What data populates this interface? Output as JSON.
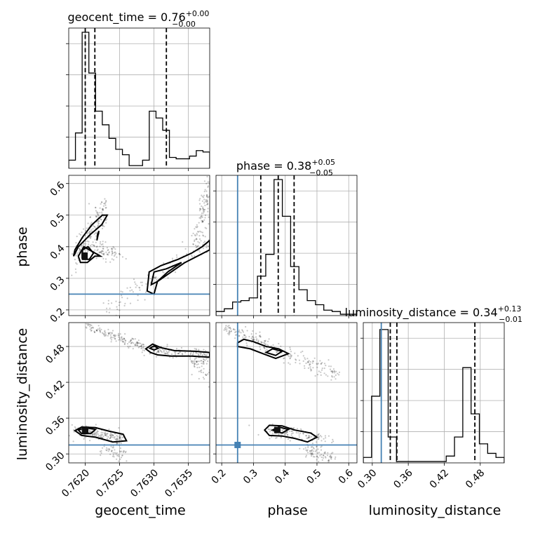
{
  "chart_data": {
    "type": "corner",
    "params": [
      "geocent_time",
      "phase",
      "luminosity_distance"
    ],
    "titles": [
      {
        "param": "geocent_time",
        "prefix": "geocent_time = 0.76",
        "plus": "+0.00",
        "minus": "−0.00"
      },
      {
        "param": "phase",
        "prefix": "phase = 0.38",
        "plus": "+0.05",
        "minus": "−0.05"
      },
      {
        "param": "luminosity_distance",
        "prefix": "luminosity_distance = 0.34",
        "plus": "+0.13",
        "minus": "−0.01"
      }
    ],
    "xlabels": [
      "geocent_time",
      "phase",
      "luminosity_distance"
    ],
    "ylabels": [
      "",
      "phase",
      "luminosity_distance"
    ],
    "ranges": {
      "geocent_time": [
        0.76176,
        0.76381
      ],
      "phase": [
        0.182,
        0.626
      ],
      "luminosity_distance": [
        0.285,
        0.52
      ]
    },
    "ticks": {
      "geocent_time": [
        "0.7620",
        "0.7625",
        "0.7630",
        "0.7635"
      ],
      "phase": [
        "0.2",
        "0.3",
        "0.4",
        "0.5",
        "0.6"
      ],
      "luminosity_distance": [
        "0.30",
        "0.36",
        "0.42",
        "0.48"
      ]
    },
    "truths": {
      "geocent_time": null,
      "phase": 0.25,
      "luminosity_distance": 0.315
    },
    "quantiles": {
      "geocent_time": [
        0.762,
        0.76214,
        0.76318
      ],
      "phase": [
        0.323,
        0.378,
        0.428
      ],
      "luminosity_distance": [
        0.33,
        0.341,
        0.471
      ]
    },
    "histograms": {
      "geocent_time": {
        "heights": [
          0.06,
          0.26,
          1.0,
          0.7,
          0.42,
          0.32,
          0.22,
          0.14,
          0.1,
          0.02,
          0.02,
          0.06,
          0.42,
          0.37,
          0.28,
          0.08,
          0.07,
          0.07,
          0.09,
          0.13,
          0.12
        ]
      },
      "phase": {
        "heights": [
          0.03,
          0.05,
          0.1,
          0.11,
          0.13,
          0.29,
          0.45,
          1.0,
          0.73,
          0.36,
          0.19,
          0.11,
          0.08,
          0.04,
          0.03,
          0.01,
          0.01
        ]
      },
      "luminosity_distance": {
        "heights": [
          0.04,
          0.49,
          0.98,
          0.19,
          0.01,
          0.01,
          0.01,
          0.01,
          0.01,
          0.01,
          0.05,
          0.19,
          0.7,
          0.36,
          0.14,
          0.07,
          0.04
        ]
      }
    },
    "scatter_clusters": [
      {
        "panel": "phase_vs_geocent_time",
        "n": 170,
        "x0": 0.76184,
        "x1": 0.76231,
        "y0": 0.37,
        "y1": 0.52,
        "sx": 3e-05,
        "sy": 0.025
      },
      {
        "panel": "phase_vs_geocent_time",
        "n": 80,
        "x0": 0.76214,
        "x1": 0.76245,
        "y0": 0.4,
        "y1": 0.37,
        "sx": 8e-05,
        "sy": 0.012
      },
      {
        "panel": "phase_vs_geocent_time",
        "n": 110,
        "x0": 0.76228,
        "x1": 0.76381,
        "y0": 0.2,
        "y1": 0.42,
        "sx": 2e-05,
        "sy": 0.018
      },
      {
        "panel": "phase_vs_geocent_time",
        "n": 120,
        "x0": 0.7636,
        "x1": 0.76381,
        "y0": 0.4,
        "y1": 0.6,
        "sx": 3e-05,
        "sy": 0.03
      },
      {
        "panel": "distance_vs_geocent_time",
        "n": 140,
        "x0": 0.762,
        "x1": 0.76285,
        "y0": 0.515,
        "y1": 0.48,
        "sx": 2e-05,
        "sy": 0.004
      },
      {
        "panel": "distance_vs_geocent_time",
        "n": 110,
        "x0": 0.76286,
        "x1": 0.76381,
        "y0": 0.475,
        "y1": 0.465,
        "sx": 4e-05,
        "sy": 0.005
      },
      {
        "panel": "distance_vs_geocent_time",
        "n": 70,
        "x0": 0.76355,
        "x1": 0.76381,
        "y0": 0.46,
        "y1": 0.44,
        "sx": 3e-05,
        "sy": 0.012
      },
      {
        "panel": "distance_vs_geocent_time",
        "n": 160,
        "x0": 0.76185,
        "x1": 0.76255,
        "y0": 0.34,
        "y1": 0.325,
        "sx": 4e-05,
        "sy": 0.005
      },
      {
        "panel": "distance_vs_geocent_time",
        "n": 50,
        "x0": 0.76225,
        "x1": 0.76255,
        "y0": 0.31,
        "y1": 0.3,
        "sx": 4e-05,
        "sy": 0.006
      },
      {
        "panel": "distance_vs_phase",
        "n": 220,
        "x0": 0.21,
        "x1": 0.57,
        "y0": 0.51,
        "y1": 0.43,
        "sx": 0.008,
        "sy": 0.007
      },
      {
        "panel": "distance_vs_phase",
        "n": 130,
        "x0": 0.35,
        "x1": 0.52,
        "y0": 0.34,
        "y1": 0.325,
        "sx": 0.025,
        "sy": 0.005
      },
      {
        "panel": "distance_vs_phase",
        "n": 80,
        "x0": 0.47,
        "x1": 0.55,
        "y0": 0.31,
        "y1": 0.29,
        "sx": 0.012,
        "sy": 0.006
      }
    ],
    "contours": [
      {
        "panel": "phase_vs_geocent_time",
        "level": "outer",
        "points": [
          [
            0.76183,
            0.37
          ],
          [
            0.7619,
            0.4
          ],
          [
            0.76208,
            0.44
          ],
          [
            0.76224,
            0.47
          ],
          [
            0.76232,
            0.5
          ],
          [
            0.76225,
            0.5
          ],
          [
            0.7621,
            0.47
          ],
          [
            0.76196,
            0.43
          ],
          [
            0.76185,
            0.39
          ],
          [
            0.76183,
            0.37
          ]
        ]
      },
      {
        "panel": "phase_vs_geocent_time",
        "level": "outer",
        "points": [
          [
            0.76193,
            0.35
          ],
          [
            0.76203,
            0.35
          ],
          [
            0.76214,
            0.37
          ],
          [
            0.76222,
            0.37
          ],
          [
            0.76214,
            0.38
          ],
          [
            0.76198,
            0.4
          ],
          [
            0.7619,
            0.37
          ],
          [
            0.76193,
            0.35
          ]
        ]
      },
      {
        "panel": "phase_vs_geocent_time",
        "level": "inner",
        "points": [
          [
            0.76196,
            0.36
          ],
          [
            0.76206,
            0.36
          ],
          [
            0.76212,
            0.38
          ],
          [
            0.76204,
            0.4
          ],
          [
            0.76196,
            0.39
          ],
          [
            0.76196,
            0.36
          ]
        ]
      },
      {
        "panel": "phase_vs_geocent_time",
        "level": "inner",
        "points": [
          [
            0.76217,
            0.42
          ],
          [
            0.7622,
            0.45
          ],
          [
            0.76218,
            0.44
          ],
          [
            0.76217,
            0.42
          ]
        ]
      },
      {
        "panel": "phase_vs_geocent_time",
        "level": "outer",
        "points": [
          [
            0.7629,
            0.26
          ],
          [
            0.76293,
            0.32
          ],
          [
            0.7631,
            0.34
          ],
          [
            0.76335,
            0.36
          ],
          [
            0.76355,
            0.38
          ],
          [
            0.7637,
            0.4
          ],
          [
            0.76381,
            0.42
          ],
          [
            0.76381,
            0.39
          ],
          [
            0.76345,
            0.35
          ],
          [
            0.76325,
            0.32
          ],
          [
            0.76305,
            0.29
          ],
          [
            0.763,
            0.25
          ],
          [
            0.7629,
            0.26
          ]
        ]
      },
      {
        "panel": "phase_vs_geocent_time",
        "level": "inner",
        "points": [
          [
            0.76296,
            0.28
          ],
          [
            0.763,
            0.32
          ],
          [
            0.76318,
            0.33
          ],
          [
            0.7634,
            0.35
          ],
          [
            0.7632,
            0.32
          ],
          [
            0.76305,
            0.29
          ],
          [
            0.76296,
            0.28
          ]
        ]
      },
      {
        "panel": "distance_vs_geocent_time",
        "level": "outer",
        "points": [
          [
            0.76288,
            0.476
          ],
          [
            0.76298,
            0.484
          ],
          [
            0.7631,
            0.478
          ],
          [
            0.7633,
            0.473
          ],
          [
            0.7636,
            0.472
          ],
          [
            0.76381,
            0.47
          ],
          [
            0.76381,
            0.462
          ],
          [
            0.76355,
            0.464
          ],
          [
            0.76325,
            0.464
          ],
          [
            0.76305,
            0.466
          ],
          [
            0.76295,
            0.47
          ],
          [
            0.76288,
            0.476
          ]
        ]
      },
      {
        "panel": "distance_vs_geocent_time",
        "level": "inner",
        "points": [
          [
            0.76294,
            0.477
          ],
          [
            0.763,
            0.481
          ],
          [
            0.76306,
            0.477
          ],
          [
            0.763,
            0.474
          ],
          [
            0.76294,
            0.477
          ]
        ]
      },
      {
        "panel": "distance_vs_geocent_time",
        "level": "outer",
        "points": [
          [
            0.76185,
            0.339
          ],
          [
            0.76195,
            0.345
          ],
          [
            0.76215,
            0.344
          ],
          [
            0.76235,
            0.338
          ],
          [
            0.76255,
            0.333
          ],
          [
            0.7626,
            0.322
          ],
          [
            0.7624,
            0.32
          ],
          [
            0.76215,
            0.328
          ],
          [
            0.76195,
            0.331
          ],
          [
            0.76185,
            0.339
          ]
        ]
      },
      {
        "panel": "distance_vs_geocent_time",
        "level": "inner",
        "points": [
          [
            0.7619,
            0.34
          ],
          [
            0.762,
            0.344
          ],
          [
            0.76215,
            0.341
          ],
          [
            0.76208,
            0.334
          ],
          [
            0.76195,
            0.334
          ],
          [
            0.7619,
            0.34
          ]
        ]
      },
      {
        "panel": "distance_vs_phase",
        "level": "outer",
        "points": [
          [
            0.25,
            0.486
          ],
          [
            0.27,
            0.492
          ],
          [
            0.3,
            0.488
          ],
          [
            0.34,
            0.48
          ],
          [
            0.38,
            0.476
          ],
          [
            0.41,
            0.468
          ],
          [
            0.37,
            0.46
          ],
          [
            0.33,
            0.468
          ],
          [
            0.29,
            0.476
          ],
          [
            0.25,
            0.48
          ],
          [
            0.25,
            0.486
          ]
        ]
      },
      {
        "panel": "distance_vs_phase",
        "level": "inner",
        "points": [
          [
            0.34,
            0.47
          ],
          [
            0.36,
            0.476
          ],
          [
            0.39,
            0.472
          ],
          [
            0.37,
            0.465
          ],
          [
            0.34,
            0.47
          ]
        ]
      },
      {
        "panel": "distance_vs_phase",
        "level": "outer",
        "points": [
          [
            0.335,
            0.34
          ],
          [
            0.35,
            0.348
          ],
          [
            0.39,
            0.347
          ],
          [
            0.43,
            0.34
          ],
          [
            0.48,
            0.335
          ],
          [
            0.5,
            0.328
          ],
          [
            0.47,
            0.32
          ],
          [
            0.43,
            0.326
          ],
          [
            0.39,
            0.33
          ],
          [
            0.35,
            0.331
          ],
          [
            0.335,
            0.34
          ]
        ]
      },
      {
        "panel": "distance_vs_phase",
        "level": "inner",
        "points": [
          [
            0.36,
            0.34
          ],
          [
            0.38,
            0.345
          ],
          [
            0.41,
            0.341
          ],
          [
            0.39,
            0.335
          ],
          [
            0.36,
            0.34
          ]
        ]
      }
    ],
    "peaks": [
      {
        "panel": "phase_vs_geocent_time",
        "x": 0.76199,
        "y": 0.372
      },
      {
        "panel": "distance_vs_geocent_time",
        "x": 0.762,
        "y": 0.34
      },
      {
        "panel": "distance_vs_phase",
        "x": 0.375,
        "y": 0.34
      }
    ],
    "grid": true,
    "legend": "none"
  }
}
